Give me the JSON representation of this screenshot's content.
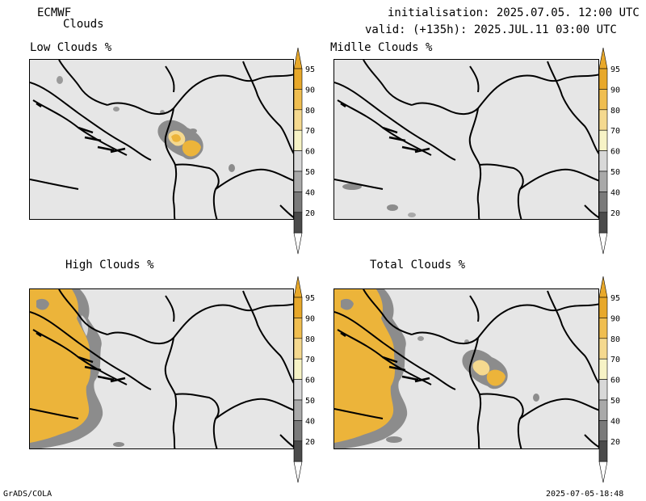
{
  "header": {
    "model": "ECMWF",
    "field": "Clouds",
    "init": "initialisation: 2025.07.05. 12:00 UTC",
    "valid": "valid: (+135h): 2025.JUL.11 03:00 UTC"
  },
  "panels": [
    {
      "title": "Low Clouds %"
    },
    {
      "title": "Midlle Clouds %"
    },
    {
      "title": "High Clouds %"
    },
    {
      "title": "Total Clouds %"
    }
  ],
  "colorbar": {
    "levels": [
      "95",
      "90",
      "80",
      "70",
      "60",
      "50",
      "40",
      "20"
    ],
    "colors": [
      "#e8a82a",
      "#f0be50",
      "#f5d98f",
      "#f7f3c6",
      "#d8d8d8",
      "#a9a9a9",
      "#7a7a7a",
      "#4b4b4b"
    ],
    "cap_top": "#e8a82a",
    "cap_bottom": "#ffffff"
  },
  "footer": {
    "left": "GrADS/COLA",
    "right": "2025-07-05-18:48"
  },
  "colors": {
    "map_background": "#e6e6e6",
    "cloud_gray": "#8c8c8c",
    "cloud_yellow": "#ecb43a"
  }
}
